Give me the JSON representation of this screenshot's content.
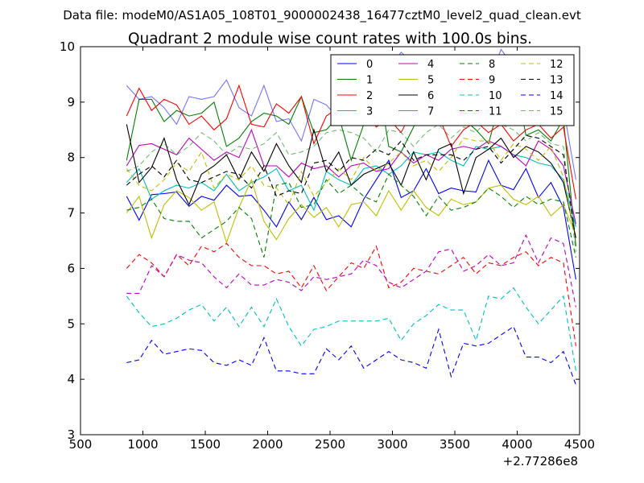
{
  "header": {
    "data_file": "Data file: modeM0/AS1A05_108T01_9000002438_16477cztM0_level2_quad_clean.evt"
  },
  "chart_data": {
    "type": "line",
    "title": "Quadrant 2 module wise count rates with 100.0s bins.",
    "xlabel": "",
    "ylabel": "",
    "x_offset_label": "+2.77286e8",
    "xlim": [
      500,
      4500
    ],
    "ylim": [
      3,
      10
    ],
    "xticks": [
      500,
      1000,
      1500,
      2000,
      2500,
      3000,
      3500,
      4000,
      4500
    ],
    "yticks": [
      3,
      4,
      5,
      6,
      7,
      8,
      9,
      10
    ],
    "grid": false,
    "legend_position": "top-right",
    "x": [
      870,
      970,
      1070,
      1170,
      1270,
      1370,
      1470,
      1570,
      1670,
      1770,
      1870,
      1970,
      2070,
      2170,
      2270,
      2370,
      2470,
      2570,
      2670,
      2770,
      2870,
      2970,
      3070,
      3170,
      3270,
      3370,
      3470,
      3570,
      3670,
      3770,
      3870,
      3970,
      4070,
      4170,
      4270,
      4370,
      4470
    ],
    "series": [
      {
        "name": "0",
        "color": "#0000ff",
        "dash": "solid",
        "values": [
          7.3,
          6.87,
          7.33,
          7.35,
          7.38,
          7.12,
          7.3,
          7.23,
          7.5,
          7.3,
          7.32,
          7.05,
          6.75,
          7.2,
          6.88,
          7.28,
          6.88,
          6.95,
          6.75,
          7.25,
          7.6,
          7.95,
          7.28,
          7.4,
          7.8,
          7.35,
          7.45,
          7.4,
          7.38,
          7.95,
          7.5,
          7.42,
          7.8,
          7.28,
          7.55,
          7.1,
          5.8
        ]
      },
      {
        "name": "1",
        "color": "#008000",
        "dash": "solid",
        "values": [
          7.95,
          9.05,
          9.05,
          8.65,
          8.85,
          8.75,
          8.8,
          9.0,
          8.2,
          8.35,
          8.65,
          8.8,
          8.75,
          8.6,
          9.1,
          8.45,
          8.5,
          8.75,
          7.95,
          8.6,
          9.6,
          8.2,
          8.1,
          8.55,
          9.05,
          8.6,
          8.9,
          8.7,
          8.5,
          8.25,
          9.1,
          9.55,
          8.4,
          8.5,
          8.3,
          8.7,
          6.4
        ]
      },
      {
        "name": "2",
        "color": "#ff0000",
        "dash": "solid",
        "values": [
          8.75,
          9.25,
          8.85,
          9.05,
          8.95,
          8.6,
          8.75,
          8.5,
          8.7,
          9.3,
          8.6,
          8.55,
          8.97,
          8.8,
          9.1,
          8.25,
          8.75,
          8.9,
          8.7,
          8.85,
          8.55,
          8.7,
          8.45,
          8.9,
          8.6,
          8.75,
          8.2,
          8.5,
          8.65,
          8.45,
          8.6,
          8.3,
          8.5,
          8.6,
          8.35,
          8.55,
          7.25
        ]
      },
      {
        "name": "3",
        "color": "#00bfbf",
        "dash": "solid",
        "values": [
          7.55,
          7.8,
          7.25,
          7.4,
          7.5,
          7.45,
          7.55,
          7.4,
          7.7,
          7.4,
          7.55,
          7.65,
          7.8,
          7.4,
          7.5,
          7.05,
          7.75,
          7.6,
          7.5,
          7.8,
          7.85,
          7.7,
          7.85,
          8.1,
          8.05,
          8.1,
          7.95,
          7.85,
          8.2,
          8.15,
          8.2,
          8.05,
          8.0,
          7.9,
          7.85,
          7.6,
          6.75
        ]
      },
      {
        "name": "4",
        "color": "#bf00bf",
        "dash": "solid",
        "values": [
          7.85,
          8.22,
          8.25,
          8.15,
          8.05,
          8.35,
          8.15,
          7.95,
          8.1,
          8.0,
          8.5,
          7.85,
          7.85,
          7.65,
          7.9,
          7.8,
          7.85,
          7.65,
          7.85,
          7.9,
          7.75,
          7.8,
          8.1,
          7.9,
          8.05,
          7.95,
          8.15,
          8.2,
          8.15,
          8.3,
          8.2,
          8.05,
          7.85,
          8.3,
          8.15,
          7.85,
          6.8
        ]
      },
      {
        "name": "5",
        "color": "#bfbf00",
        "dash": "solid",
        "values": [
          7.0,
          7.3,
          6.55,
          7.15,
          7.4,
          7.28,
          7.05,
          7.2,
          6.47,
          7.1,
          7.6,
          6.85,
          6.52,
          6.9,
          7.15,
          6.92,
          7.1,
          6.75,
          7.15,
          7.2,
          6.95,
          7.4,
          7.05,
          7.4,
          7.1,
          6.95,
          7.25,
          7.15,
          7.2,
          7.45,
          7.5,
          7.25,
          7.15,
          7.3,
          6.95,
          7.15,
          6.6
        ]
      },
      {
        "name": "6",
        "color": "#000000",
        "dash": "solid",
        "values": [
          8.6,
          7.55,
          7.82,
          8.35,
          7.6,
          7.15,
          7.7,
          7.85,
          8.05,
          7.6,
          8.1,
          7.75,
          8.25,
          7.85,
          7.55,
          8.5,
          7.75,
          8.1,
          7.5,
          7.7,
          7.8,
          7.9,
          7.5,
          8.1,
          7.6,
          8.15,
          8.25,
          7.35,
          8.0,
          8.15,
          8.35,
          8.0,
          8.2,
          8.1,
          7.9,
          7.55,
          6.55
        ]
      },
      {
        "name": "7",
        "color": "#0000ff",
        "dash": "solid",
        "opacity": 0.55,
        "values": [
          9.3,
          9.05,
          9.1,
          8.9,
          8.6,
          9.1,
          9.05,
          9.1,
          9.4,
          8.9,
          8.75,
          9.3,
          8.65,
          8.7,
          8.3,
          9.05,
          8.95,
          8.7,
          9.35,
          9.15,
          9.4,
          9.6,
          9.9,
          9.7,
          8.95,
          9.7,
          9.5,
          9.0,
          9.05,
          9.35,
          9.95,
          9.65,
          9.2,
          9.35,
          9.5,
          8.9,
          7.6
        ]
      },
      {
        "name": "8",
        "color": "#008000",
        "dash": "dashed",
        "values": [
          7.05,
          7.1,
          7.25,
          6.9,
          6.85,
          6.85,
          6.55,
          6.7,
          6.85,
          7.1,
          6.9,
          6.2,
          7.5,
          7.55,
          7.1,
          7.15,
          7.6,
          7.35,
          7.5,
          7.3,
          7.2,
          7.7,
          7.5,
          7.3,
          6.95,
          7.3,
          7.05,
          7.1,
          7.2,
          7.45,
          7.3,
          7.1,
          7.3,
          7.15,
          7.25,
          7.2,
          6.2
        ]
      },
      {
        "name": "9",
        "color": "#ff0000",
        "dash": "dashed",
        "values": [
          6.0,
          6.25,
          6.1,
          5.85,
          6.25,
          6.05,
          6.4,
          6.3,
          6.45,
          6.2,
          6.05,
          6.05,
          5.9,
          5.95,
          5.65,
          6.05,
          5.6,
          5.85,
          6.1,
          6.0,
          6.4,
          5.65,
          5.75,
          6.0,
          5.95,
          5.9,
          6.05,
          6.2,
          5.9,
          6.1,
          6.05,
          6.2,
          6.3,
          6.05,
          6.2,
          6.1,
          4.6
        ]
      },
      {
        "name": "10",
        "color": "#00bfbf",
        "dash": "dashed",
        "values": [
          5.5,
          5.2,
          4.95,
          5.0,
          5.1,
          5.25,
          5.35,
          5.05,
          5.3,
          4.95,
          5.3,
          4.95,
          5.45,
          4.95,
          4.6,
          4.9,
          4.95,
          5.05,
          5.05,
          5.05,
          5.05,
          5.1,
          4.7,
          5.0,
          5.15,
          5.35,
          5.25,
          5.25,
          4.7,
          5.5,
          5.45,
          5.65,
          5.3,
          5.0,
          5.25,
          5.5,
          4.15
        ]
      },
      {
        "name": "11",
        "color": "#bf00bf",
        "dash": "dashed",
        "values": [
          5.55,
          5.55,
          6.05,
          5.85,
          6.25,
          6.15,
          6.1,
          5.85,
          5.65,
          5.9,
          5.7,
          5.7,
          5.8,
          5.75,
          5.6,
          5.85,
          5.8,
          5.85,
          5.9,
          6.15,
          6.05,
          5.75,
          5.65,
          5.8,
          5.95,
          6.3,
          6.35,
          5.95,
          6.05,
          6.25,
          6.05,
          6.1,
          6.6,
          6.1,
          6.55,
          6.45,
          5.3
        ]
      },
      {
        "name": "12",
        "color": "#bfbf00",
        "dash": "dashed",
        "values": [
          7.8,
          7.5,
          7.4,
          7.6,
          7.9,
          7.75,
          8.1,
          7.45,
          7.7,
          7.6,
          7.85,
          7.5,
          7.45,
          7.15,
          7.75,
          7.3,
          7.55,
          7.8,
          7.6,
          8.0,
          7.75,
          7.9,
          8.1,
          7.85,
          7.95,
          7.75,
          8.0,
          8.35,
          8.3,
          8.3,
          7.95,
          8.25,
          8.15,
          7.95,
          8.2,
          7.65,
          6.5
        ]
      },
      {
        "name": "13",
        "color": "#000000",
        "dash": "dashed",
        "values": [
          7.5,
          7.7,
          7.85,
          7.65,
          7.95,
          7.6,
          7.55,
          7.65,
          7.75,
          7.7,
          7.45,
          7.85,
          7.3,
          7.4,
          7.35,
          7.9,
          7.95,
          7.75,
          8.0,
          7.95,
          8.15,
          8.05,
          8.3,
          7.95,
          8.05,
          8.05,
          8.05,
          7.95,
          8.15,
          8.2,
          7.9,
          8.15,
          8.4,
          8.35,
          8.2,
          8.05,
          6.5
        ]
      },
      {
        "name": "14",
        "color": "#0000ff",
        "dash": "dashed",
        "values": [
          4.3,
          4.35,
          4.7,
          4.45,
          4.5,
          4.55,
          4.52,
          4.3,
          4.25,
          4.35,
          4.25,
          4.75,
          4.15,
          4.15,
          4.1,
          4.1,
          4.55,
          4.35,
          4.6,
          4.2,
          4.35,
          4.5,
          4.35,
          4.3,
          4.2,
          4.9,
          4.05,
          4.65,
          4.6,
          4.65,
          4.8,
          4.95,
          4.4,
          4.4,
          4.3,
          4.5,
          3.9
        ]
      },
      {
        "name": "15",
        "color": "#008000",
        "dash": "dashed",
        "opacity": 0.55,
        "values": [
          7.75,
          7.85,
          8.1,
          8.25,
          8.05,
          8.2,
          8.45,
          8.3,
          8.05,
          8.2,
          8.15,
          8.25,
          8.45,
          8.05,
          8.1,
          8.2,
          8.45,
          8.5,
          8.45,
          8.35,
          8.1,
          8.5,
          8.45,
          8.2,
          8.45,
          8.6,
          8.35,
          8.55,
          8.45,
          8.7,
          8.6,
          8.5,
          8.3,
          8.45,
          8.25,
          8.2,
          6.3
        ]
      }
    ]
  }
}
